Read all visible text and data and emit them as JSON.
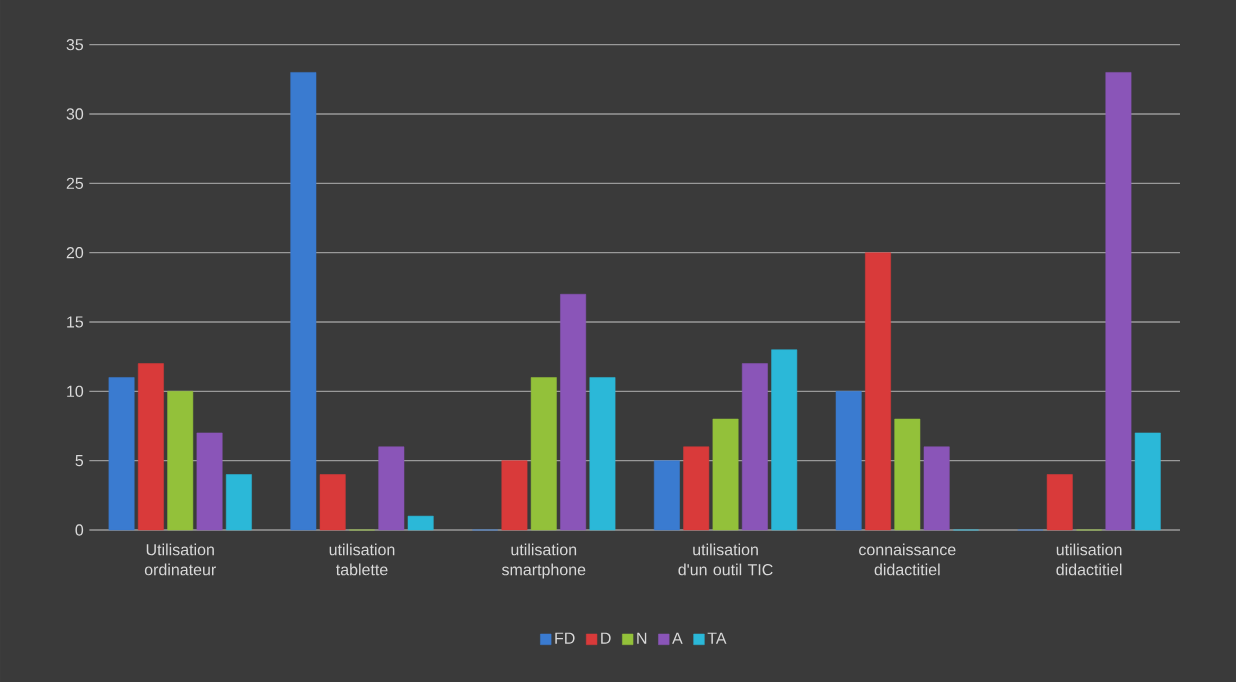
{
  "chart_data": {
    "type": "bar",
    "categories": [
      "Utilisation ordinateur",
      "utilisation tablette",
      "utilisation smartphone",
      "utilisation d'un outil TIC",
      "connaissance didactitiel",
      "utilisation didactitiel"
    ],
    "series": [
      {
        "name": "FD",
        "color": "#3a7bd0",
        "values": [
          11,
          33,
          0,
          5,
          10,
          0
        ]
      },
      {
        "name": "D",
        "color": "#d93a3a",
        "values": [
          12,
          4,
          5,
          6,
          20,
          4
        ]
      },
      {
        "name": "N",
        "color": "#93c13a",
        "values": [
          10,
          0,
          11,
          8,
          8,
          0
        ]
      },
      {
        "name": "A",
        "color": "#8a55b8",
        "values": [
          7,
          6,
          17,
          12,
          6,
          33
        ]
      },
      {
        "name": "TA",
        "color": "#2bb8d8",
        "values": [
          4,
          1,
          11,
          13,
          0,
          7
        ]
      }
    ],
    "ylim": [
      0,
      35
    ],
    "yticks": [
      0,
      5,
      10,
      15,
      20,
      25,
      30,
      35
    ],
    "grid": "y",
    "legend": "bottom"
  }
}
